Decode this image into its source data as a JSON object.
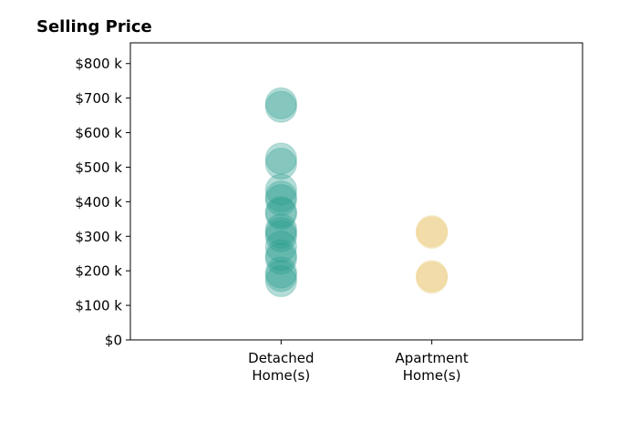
{
  "chart_data": {
    "type": "scatter",
    "title": "Selling Price",
    "xlabel": "",
    "ylabel": "",
    "categories": [
      {
        "lines": [
          "Detached",
          "Home(s)"
        ]
      },
      {
        "lines": [
          "Apartment",
          "Home(s)"
        ]
      }
    ],
    "y_ticks": [
      {
        "value": 0,
        "label": "$0"
      },
      {
        "value": 100,
        "label": "$100 k"
      },
      {
        "value": 200,
        "label": "$200 k"
      },
      {
        "value": 300,
        "label": "$300 k"
      },
      {
        "value": 400,
        "label": "$400 k"
      },
      {
        "value": 500,
        "label": "$500 k"
      },
      {
        "value": 600,
        "label": "$600 k"
      },
      {
        "value": 700,
        "label": "$700 k"
      },
      {
        "value": 800,
        "label": "$800 k"
      }
    ],
    "ylim": [
      0,
      860
    ],
    "xlim": [
      -1,
      2
    ],
    "grid": false,
    "series": [
      {
        "category_index": 0,
        "color": "#2a9d8f",
        "opacity": 0.35,
        "values": [
          685,
          675,
          525,
          510,
          435,
          415,
          405,
          370,
          365,
          320,
          310,
          300,
          270,
          245,
          235,
          195,
          185,
          170
        ]
      },
      {
        "category_index": 1,
        "color": "#e9c46a",
        "opacity": 0.35,
        "values": [
          315,
          310,
          185,
          180
        ]
      }
    ]
  }
}
